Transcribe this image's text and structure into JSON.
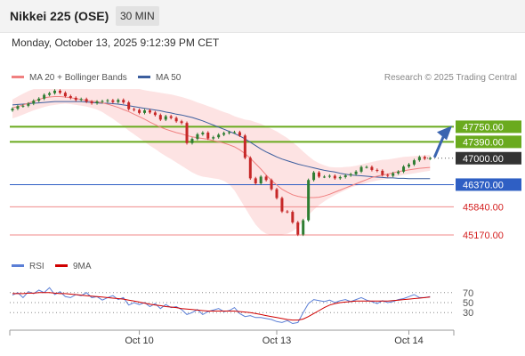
{
  "header": {
    "title": "Nikkei 225 (OSE)",
    "timeframe": "30 MIN",
    "datetime": "Monday, October 13, 2025 9:12:39 PM CET"
  },
  "chart_data": [
    {
      "type": "candlestick",
      "legend": [
        {
          "label": "MA 20 + Bollinger Bands",
          "color": "#f08080"
        },
        {
          "label": "MA 50",
          "color": "#3c5e9e"
        }
      ],
      "legend_position": "top-left",
      "credit": "Research © 2025 Trading Central",
      "y_range": [
        45000,
        48650
      ],
      "x_ticks": [
        {
          "label": "Oct 10",
          "index": 24
        },
        {
          "label": "Oct 13",
          "index": 50
        },
        {
          "label": "Oct 14",
          "index": 75
        }
      ],
      "levels": [
        {
          "value": 47750.0,
          "label": "47750.00",
          "style": "green"
        },
        {
          "value": 47390.0,
          "label": "47390.00",
          "style": "green"
        },
        {
          "value": 47000.0,
          "label": "47000.00",
          "style": "current"
        },
        {
          "value": 46370.0,
          "label": "46370.00",
          "style": "blue"
        },
        {
          "value": 45840.0,
          "label": "45840.00",
          "style": "red"
        },
        {
          "value": 45170.0,
          "label": "45170.00",
          "style": "red"
        }
      ],
      "closes": [
        48180,
        48240,
        48250,
        48300,
        48370,
        48420,
        48510,
        48550,
        48610,
        48560,
        48480,
        48440,
        48390,
        48410,
        48350,
        48310,
        48350,
        48360,
        48380,
        48340,
        48390,
        48330,
        48170,
        48150,
        48080,
        48140,
        48090,
        48030,
        47920,
        48000,
        47960,
        47880,
        47840,
        47360,
        47460,
        47570,
        47610,
        47470,
        47500,
        47560,
        47600,
        47620,
        47620,
        47540,
        47010,
        46520,
        46400,
        46560,
        46480,
        46260,
        46050,
        45730,
        45720,
        45470,
        45180,
        45520,
        46480,
        46660,
        46560,
        46560,
        46580,
        46520,
        46550,
        46590,
        46620,
        46680,
        46790,
        46790,
        46720,
        46700,
        46600,
        46580,
        46640,
        46680,
        46800,
        46850,
        46950,
        47030,
        46990,
        47000
      ],
      "ma20": [
        48200,
        48230,
        48270,
        48310,
        48360,
        48400,
        48440,
        48460,
        48470,
        48470,
        48460,
        48440,
        48420,
        48400,
        48380,
        48360,
        48350,
        48320,
        48290,
        48250,
        48210,
        48160,
        48110,
        48050,
        47990,
        47930,
        47860,
        47800,
        47740,
        47690,
        47650,
        47610,
        47580,
        47540,
        47510,
        47490,
        47470,
        47450,
        47420,
        47390,
        47360,
        47320,
        47270,
        47200,
        47110,
        47000,
        46870,
        46740,
        46600,
        46470,
        46360,
        46260,
        46190,
        46130,
        46090,
        46070,
        46060,
        46060,
        46070,
        46100,
        46140,
        46190,
        46240,
        46290,
        46340,
        46390,
        46440,
        46490,
        46540,
        46570,
        46600,
        46620,
        46650,
        46680,
        46700,
        46720,
        46740,
        46760,
        46770,
        46780
      ],
      "bb_upper": [
        48400,
        48470,
        48540,
        48600,
        48650,
        48650,
        48650,
        48650,
        48650,
        48650,
        48650,
        48650,
        48650,
        48650,
        48650,
        48650,
        48650,
        48650,
        48650,
        48650,
        48650,
        48650,
        48650,
        48650,
        48650,
        48620,
        48600,
        48580,
        48560,
        48540,
        48520,
        48490,
        48460,
        48420,
        48380,
        48330,
        48290,
        48240,
        48200,
        48150,
        48100,
        48060,
        48000,
        47960,
        47920,
        47900,
        47860,
        47820,
        47760,
        47700,
        47640,
        47560,
        47480,
        47380,
        47280,
        47160,
        47050,
        46950,
        46880,
        46830,
        46790,
        46780,
        46780,
        46790,
        46800,
        46820,
        46850,
        46880,
        46910,
        46940,
        46960,
        46970,
        46990,
        47010,
        47030,
        47040,
        47050,
        47060,
        47070,
        47080
      ],
      "bb_lower": [
        47950,
        47990,
        48040,
        48090,
        48140,
        48180,
        48220,
        48250,
        48270,
        48290,
        48300,
        48290,
        48270,
        48250,
        48230,
        48200,
        48160,
        48100,
        48020,
        47940,
        47850,
        47760,
        47660,
        47570,
        47480,
        47390,
        47300,
        47220,
        47130,
        47050,
        46980,
        46900,
        46820,
        46740,
        46660,
        46600,
        46560,
        46540,
        46520,
        46500,
        46460,
        46380,
        46230,
        46030,
        45820,
        45610,
        45420,
        45280,
        45200,
        45170,
        45170,
        45180,
        45200,
        45260,
        45350,
        45500,
        45640,
        45770,
        45880,
        45970,
        46050,
        46120,
        46180,
        46240,
        46300,
        46340,
        46370,
        46410,
        46440,
        46470,
        46490,
        46510,
        46540,
        46570,
        46600,
        46620,
        46640,
        46660,
        46680,
        46700
      ],
      "ma50": [
        48270,
        48280,
        48290,
        48300,
        48310,
        48320,
        48330,
        48340,
        48350,
        48350,
        48350,
        48350,
        48350,
        48350,
        48340,
        48330,
        48320,
        48310,
        48310,
        48300,
        48290,
        48270,
        48250,
        48230,
        48210,
        48190,
        48170,
        48150,
        48130,
        48100,
        48080,
        48050,
        48030,
        48000,
        47970,
        47930,
        47890,
        47840,
        47790,
        47740,
        47690,
        47640,
        47590,
        47530,
        47460,
        47380,
        47300,
        47220,
        47150,
        47090,
        47030,
        46980,
        46940,
        46900,
        46860,
        46830,
        46800,
        46770,
        46740,
        46710,
        46690,
        46670,
        46640,
        46620,
        46600,
        46590,
        46580,
        46570,
        46560,
        46550,
        46540,
        46530,
        46530,
        46520,
        46520,
        46510,
        46510,
        46510,
        46510,
        46510
      ]
    },
    {
      "type": "line",
      "legend": [
        {
          "label": "RSI",
          "color": "#5b7fd6"
        },
        {
          "label": "9MA",
          "color": "#d00000"
        }
      ],
      "y_range": [
        0,
        100
      ],
      "y_ticks": [
        {
          "value": 70,
          "label": "70"
        },
        {
          "value": 50,
          "label": "50"
        },
        {
          "value": 30,
          "label": "30"
        }
      ],
      "rsi": [
        65,
        70,
        60,
        72,
        68,
        75,
        70,
        80,
        66,
        72,
        62,
        60,
        66,
        64,
        70,
        60,
        62,
        55,
        60,
        64,
        56,
        60,
        45,
        50,
        46,
        50,
        42,
        48,
        38,
        46,
        40,
        42,
        36,
        26,
        30,
        36,
        26,
        32,
        35,
        38,
        32,
        34,
        40,
        28,
        22,
        24,
        20,
        20,
        18,
        16,
        12,
        10,
        14,
        8,
        10,
        30,
        48,
        56,
        54,
        52,
        55,
        50,
        54,
        56,
        52,
        56,
        60,
        55,
        52,
        48,
        54,
        50,
        52,
        56,
        58,
        62,
        66,
        60,
        60,
        62
      ],
      "ma9": [
        68,
        68,
        68,
        69,
        69,
        70,
        70,
        70,
        69,
        68,
        68,
        67,
        66,
        65,
        64,
        63,
        62,
        61,
        60,
        59,
        58,
        57,
        55,
        53,
        51,
        49,
        47,
        45,
        44,
        42,
        41,
        40,
        38,
        37,
        36,
        35,
        34,
        33,
        33,
        33,
        33,
        33,
        33,
        32,
        31,
        30,
        28,
        26,
        24,
        22,
        20,
        18,
        16,
        15,
        15,
        17,
        22,
        28,
        34,
        40,
        45,
        48,
        50,
        51,
        52,
        53,
        53,
        53,
        53,
        53,
        53,
        53,
        54,
        55,
        56,
        57,
        58,
        59,
        60,
        61
      ]
    }
  ]
}
